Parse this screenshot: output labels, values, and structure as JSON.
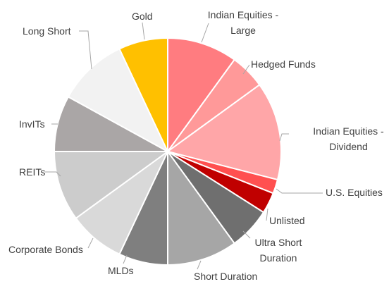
{
  "chart_data": {
    "type": "pie",
    "categories": [
      "Indian Equities - Large",
      "Hedged Funds",
      "Indian Equities - Dividend",
      "U.S. Equities",
      "Unlisted",
      "Ultra Short Duration",
      "Short Duration",
      "MLDs",
      "Corporate Bonds",
      "REITs",
      "InvITs",
      "Long Short",
      "Gold"
    ],
    "values": [
      10,
      5,
      14,
      2,
      3,
      6,
      10,
      7,
      8,
      10,
      8,
      10,
      7
    ],
    "colors": [
      "#ff7c80",
      "#ff9999",
      "#ffa6a8",
      "#ff5050",
      "#c00000",
      "#6f6f6f",
      "#a6a6a6",
      "#7f7f7f",
      "#d9d9d9",
      "#cccccc",
      "#aaa6a6",
      "#f2f2f2",
      "#ffc000"
    ]
  }
}
